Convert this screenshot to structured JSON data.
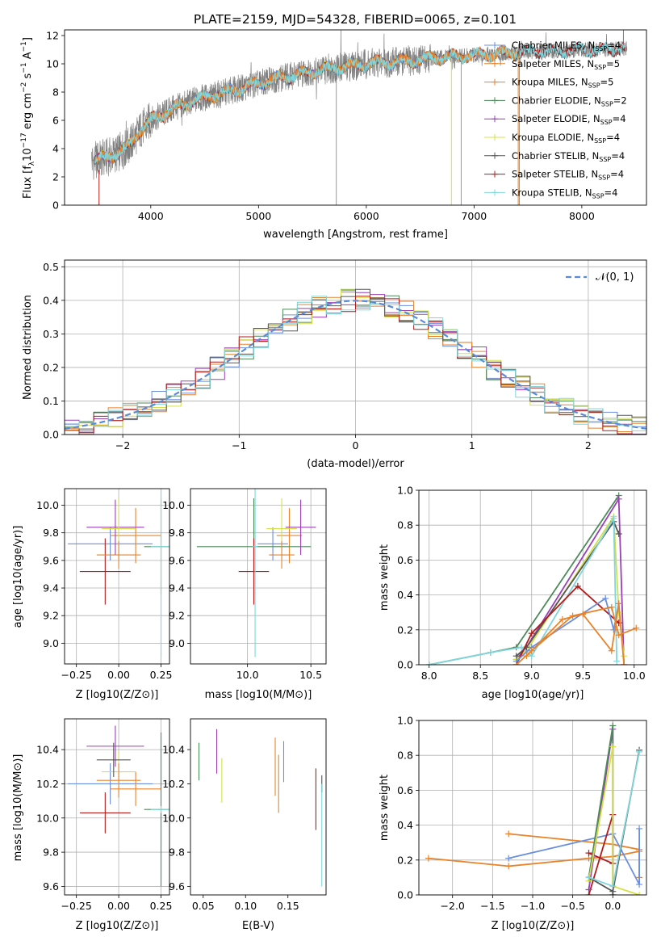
{
  "figure": {
    "title": "PLATE=2159, MJD=54328, FIBERID=0065, z=0.101"
  },
  "colors": {
    "Chabrier MILES": "#6a8fe0",
    "Salpeter MILES": "#e8832a",
    "Kroupa MILES": "#e8832a",
    "Chabrier ELODIE": "#4d8a5a",
    "Salpeter ELODIE": "#9a3fb5",
    "Kroupa ELODIE": "#d4e04a",
    "Chabrier STELIB": "#555555",
    "Salpeter STELIB": "#b31b1b",
    "Kroupa STELIB": "#7fd6dc",
    "data": "#808080"
  },
  "chart_data": [
    {
      "id": "spectrum",
      "type": "line",
      "xlabel": "wavelength [Angstrom, rest frame]",
      "ylabel": "Flux [f_λ 10^-17 erg cm^-2 s^-1 A^-1]",
      "ylabel_parts": {
        "a": "Flux [f",
        "b": "λ",
        "c": "10",
        "d": "−17",
        "e": " erg cm",
        "f": "−2",
        "g": " s",
        "h": "−1",
        "i": " A",
        "j": "−1",
        "k": "]"
      },
      "xlim": [
        3200,
        8600
      ],
      "ylim": [
        0,
        12.4
      ],
      "xticks": [
        4000,
        5000,
        6000,
        7000,
        8000
      ],
      "yticks": [
        0,
        2,
        4,
        6,
        8,
        10,
        12
      ],
      "legend_position": "right",
      "legend": [
        {
          "name": "Chabrier MILES",
          "nssp": "4"
        },
        {
          "name": "Salpeter MILES",
          "nssp": "5"
        },
        {
          "name": "Kroupa MILES",
          "nssp": "5"
        },
        {
          "name": "Chabrier ELODIE",
          "nssp": "2"
        },
        {
          "name": "Salpeter ELODIE",
          "nssp": "4"
        },
        {
          "name": "Kroupa ELODIE",
          "nssp": "4"
        },
        {
          "name": "Chabrier STELIB",
          "nssp": "4"
        },
        {
          "name": "Salpeter STELIB",
          "nssp": "4"
        },
        {
          "name": "Kroupa STELIB",
          "nssp": "4"
        }
      ],
      "nssp_label": "N",
      "nssp_sub": "SSP",
      "continuum": {
        "x": [
          3450,
          3600,
          3700,
          3800,
          3900,
          4000,
          4100,
          4200,
          4300,
          4400,
          4500,
          4600,
          4700,
          4800,
          4900,
          5000,
          5200,
          5400,
          5600,
          5800,
          6000,
          6200,
          6400,
          6600,
          6800,
          7000,
          7200,
          7400,
          7600,
          7800,
          8000,
          8200,
          8400
        ],
        "y": [
          3.1,
          3.4,
          3.7,
          4.2,
          5.3,
          6.0,
          6.4,
          6.8,
          7.1,
          7.4,
          7.6,
          7.8,
          8.0,
          8.2,
          8.4,
          8.6,
          9.0,
          9.3,
          9.6,
          9.8,
          10.0,
          10.1,
          10.2,
          10.4,
          10.5,
          10.6,
          10.7,
          10.8,
          10.9,
          10.9,
          11.0,
          11.0,
          11.1
        ]
      }
    },
    {
      "id": "residuals",
      "type": "step",
      "xlabel": "(data-model)/error",
      "ylabel": "Normed distribution",
      "xlim": [
        -2.5,
        2.5
      ],
      "ylim": [
        0,
        0.52
      ],
      "xticks": [
        -2,
        -1,
        0,
        1,
        2
      ],
      "xtick_labels": [
        "−2",
        "−1",
        "0",
        "1",
        "2"
      ],
      "yticks": [
        0.0,
        0.1,
        0.2,
        0.3,
        0.4,
        0.5
      ],
      "ytick_labels": [
        "0.0",
        "0.1",
        "0.2",
        "0.3",
        "0.4",
        "0.5"
      ],
      "grid": true,
      "legend_position": "top-right",
      "legend_label": "𝒩(0, 1)",
      "reference_curve": "normal(0,1)"
    },
    {
      "id": "age-vs-Z",
      "type": "scatter",
      "xlabel": "Z [log10(Z/Z⊙)]",
      "ylabel": "age [log10(age/yr)]",
      "xlim": [
        -0.32,
        0.3
      ],
      "ylim": [
        8.85,
        10.12
      ],
      "xticks": [
        -0.25,
        0.0,
        0.25
      ],
      "xtick_labels": [
        "−0.25",
        "0.00",
        "0.25"
      ],
      "yticks": [
        9.0,
        9.2,
        9.4,
        9.6,
        9.8,
        10.0
      ],
      "ytick_labels": [
        "9.0",
        "9.2",
        "9.4",
        "9.6",
        "9.8",
        "10.0"
      ],
      "grid": true,
      "points": [
        {
          "model": "Chabrier MILES",
          "x": -0.05,
          "xerr": 0.25,
          "y": 9.72,
          "yerr": 0.12
        },
        {
          "model": "Salpeter MILES",
          "x": 0.1,
          "xerr": 0.15,
          "y": 9.78,
          "yerr": 0.2
        },
        {
          "model": "Chabrier ELODIE",
          "x": 0.25,
          "xerr": 0.1,
          "y": 9.7,
          "yerr": 0.35
        },
        {
          "model": "Salpeter ELODIE",
          "x": -0.02,
          "xerr": 0.17,
          "y": 9.84,
          "yerr": 0.2
        },
        {
          "model": "Kroupa ELODIE",
          "x": 0.0,
          "xerr": 0.1,
          "y": 9.83,
          "yerr": 0.22
        },
        {
          "model": "Salpeter STELIB",
          "x": -0.08,
          "xerr": 0.15,
          "y": 9.52,
          "yerr": 0.24
        },
        {
          "model": "Kroupa STELIB",
          "x": 0.25,
          "xerr": 0.06,
          "y": 9.7,
          "yerr": 0.8
        },
        {
          "model": "Kroupa MILES",
          "x": 0.0,
          "xerr": 0.13,
          "y": 9.64,
          "yerr": 0.1
        }
      ]
    },
    {
      "id": "age-vs-mass",
      "type": "scatter",
      "xlabel": "mass [log10(M/M⊙)]",
      "xlim": [
        9.55,
        10.62
      ],
      "ylim": [
        8.85,
        10.12
      ],
      "xticks": [
        10.0,
        10.5
      ],
      "xtick_labels": [
        "10.0",
        "10.5"
      ],
      "yticks": [
        9.0,
        9.2,
        9.4,
        9.6,
        9.8,
        10.0
      ],
      "ytick_labels": [
        "9.0",
        "9.2",
        "9.4",
        "9.6",
        "9.8",
        "10.0"
      ],
      "grid": true,
      "points": [
        {
          "model": "Chabrier MILES",
          "x": 10.2,
          "xerr": 0.12,
          "y": 9.72,
          "yerr": 0.12
        },
        {
          "model": "Salpeter MILES",
          "x": 10.33,
          "xerr": 0.1,
          "y": 9.78,
          "yerr": 0.2
        },
        {
          "model": "Chabrier ELODIE",
          "x": 10.05,
          "xerr": 0.45,
          "y": 9.7,
          "yerr": 0.35
        },
        {
          "model": "Salpeter ELODIE",
          "x": 10.42,
          "xerr": 0.12,
          "y": 9.84,
          "yerr": 0.2
        },
        {
          "model": "Kroupa ELODIE",
          "x": 10.27,
          "xerr": 0.12,
          "y": 9.83,
          "yerr": 0.22
        },
        {
          "model": "Salpeter STELIB",
          "x": 10.05,
          "xerr": 0.12,
          "y": 9.52,
          "yerr": 0.24
        },
        {
          "model": "Kroupa STELIB",
          "x": 10.06,
          "xerr": 0.02,
          "y": 9.7,
          "yerr": 0.8
        },
        {
          "model": "Kroupa MILES",
          "x": 10.27,
          "xerr": 0.1,
          "y": 9.64,
          "yerr": 0.1
        }
      ]
    },
    {
      "id": "weight-vs-age",
      "type": "line",
      "xlabel": "age [log10(age/yr)]",
      "ylabel": "mass weight",
      "xlim": [
        7.9,
        10.12
      ],
      "ylim": [
        0,
        1.0
      ],
      "xticks": [
        8.0,
        8.5,
        9.0,
        9.5,
        10.0
      ],
      "xtick_labels": [
        "8.0",
        "8.5",
        "9.0",
        "9.5",
        "10.0"
      ],
      "yticks": [
        0.0,
        0.2,
        0.4,
        0.6,
        0.8,
        1.0
      ],
      "ytick_labels": [
        "0.0",
        "0.2",
        "0.4",
        "0.6",
        "0.8",
        "1.0"
      ],
      "grid": true,
      "series": [
        {
          "model": "Chabrier ELODIE",
          "x": [
            8.0,
            8.6,
            8.85,
            9.85
          ],
          "y": [
            0.0,
            0.07,
            0.1,
            0.97
          ]
        },
        {
          "model": "Salpeter ELODIE",
          "x": [
            8.85,
            8.95,
            9.85,
            9.9
          ],
          "y": [
            0.03,
            0.1,
            0.95,
            0.0
          ]
        },
        {
          "model": "Kroupa ELODIE",
          "x": [
            8.85,
            8.95,
            9.8,
            9.85,
            9.9
          ],
          "y": [
            0.03,
            0.08,
            0.85,
            0.3,
            0.05
          ]
        },
        {
          "model": "Chabrier STELIB",
          "x": [
            8.85,
            8.95,
            9.8,
            9.85
          ],
          "y": [
            0.05,
            0.1,
            0.82,
            0.75
          ]
        },
        {
          "model": "Kroupa STELIB",
          "x": [
            8.0,
            8.6,
            8.9,
            9.0,
            9.8,
            9.83
          ],
          "y": [
            0.0,
            0.07,
            0.1,
            0.05,
            0.84,
            0.02
          ]
        },
        {
          "model": "Salpeter STELIB",
          "x": [
            8.85,
            9.0,
            9.45,
            9.85
          ],
          "y": [
            0.0,
            0.18,
            0.45,
            0.24
          ]
        },
        {
          "model": "Chabrier MILES",
          "x": [
            8.85,
            9.0,
            9.72,
            9.8,
            9.85
          ],
          "y": [
            0.02,
            0.1,
            0.38,
            0.2,
            0.35
          ]
        },
        {
          "model": "Salpeter MILES",
          "x": [
            8.85,
            9.0,
            9.4,
            9.78,
            9.85,
            10.02
          ],
          "y": [
            0.0,
            0.08,
            0.28,
            0.33,
            0.17,
            0.21
          ]
        },
        {
          "model": "Kroupa MILES",
          "x": [
            8.95,
            9.3,
            9.5,
            9.78,
            9.85,
            9.9
          ],
          "y": [
            0.05,
            0.26,
            0.29,
            0.08,
            0.35,
            0.0
          ]
        }
      ]
    },
    {
      "id": "mass-vs-Z",
      "type": "scatter",
      "xlabel": "Z [log10(Z/Z⊙)]",
      "ylabel": "mass [log10(M/M⊙)]",
      "xlim": [
        -0.32,
        0.3
      ],
      "ylim": [
        9.55,
        10.58
      ],
      "xticks": [
        -0.25,
        0.0,
        0.25
      ],
      "xtick_labels": [
        "−0.25",
        "0.00",
        "0.25"
      ],
      "yticks": [
        9.6,
        9.8,
        10.0,
        10.2,
        10.4
      ],
      "ytick_labels": [
        "9.6",
        "9.8",
        "10.0",
        "10.2",
        "10.4"
      ],
      "grid": true,
      "points": [
        {
          "model": "Chabrier MILES",
          "x": -0.05,
          "xerr": 0.25,
          "y": 10.2,
          "yerr": 0.12
        },
        {
          "model": "Salpeter MILES",
          "x": 0.1,
          "xerr": 0.15,
          "y": 10.17,
          "yerr": 0.1
        },
        {
          "model": "Chabrier ELODIE",
          "x": 0.25,
          "xerr": 0.1,
          "y": 10.05,
          "yerr": 0.45
        },
        {
          "model": "Salpeter ELODIE",
          "x": -0.02,
          "xerr": 0.17,
          "y": 10.42,
          "yerr": 0.12
        },
        {
          "model": "Kroupa ELODIE",
          "x": 0.0,
          "xerr": 0.1,
          "y": 10.27,
          "yerr": 0.12
        },
        {
          "model": "Salpeter STELIB",
          "x": -0.08,
          "xerr": 0.15,
          "y": 10.03,
          "yerr": 0.12
        },
        {
          "model": "Kroupa STELIB",
          "x": 0.25,
          "xerr": 0.06,
          "y": 10.05,
          "yerr": 0.02
        },
        {
          "model": "Kroupa MILES",
          "x": 0.0,
          "xerr": 0.13,
          "y": 10.22,
          "yerr": 0.1
        },
        {
          "model": "Chabrier STELIB",
          "x": -0.03,
          "xerr": 0.1,
          "y": 10.34,
          "yerr": 0.1
        }
      ]
    },
    {
      "id": "mass-vs-ebv",
      "type": "scatter",
      "xlabel": "E(B-V)",
      "xlim": [
        0.035,
        0.195
      ],
      "ylim": [
        9.55,
        10.58
      ],
      "xticks": [
        0.05,
        0.1,
        0.15
      ],
      "xtick_labels": [
        "0.05",
        "0.10",
        "0.15"
      ],
      "yticks": [
        9.6,
        9.8,
        10.0,
        10.2,
        10.4
      ],
      "ytick_labels": [
        "9.6",
        "9.8",
        "10.0",
        "10.2",
        "10.4"
      ],
      "grid": false,
      "points": [
        {
          "model": "Chabrier ELODIE",
          "x": 0.045,
          "y": 10.33,
          "yerr": 0.11
        },
        {
          "model": "Salpeter ELODIE",
          "x": 0.066,
          "y": 10.39,
          "yerr": 0.13
        },
        {
          "model": "Kroupa ELODIE",
          "x": 0.072,
          "y": 10.22,
          "yerr": 0.13
        },
        {
          "model": "Kroupa MILES",
          "x": 0.135,
          "y": 10.3,
          "yerr": 0.17
        },
        {
          "model": "Salpeter MILES",
          "x": 0.139,
          "y": 10.2,
          "yerr": 0.17
        },
        {
          "model": "Chabrier MILES",
          "x": 0.145,
          "y": 10.33,
          "yerr": 0.12
        },
        {
          "model": "Salpeter STELIB",
          "x": 0.183,
          "y": 10.11,
          "yerr": 0.18
        },
        {
          "model": "Chabrier STELIB",
          "x": 0.19,
          "y": 10.2,
          "yerr": 0.05
        },
        {
          "model": "Kroupa STELIB",
          "x": 0.19,
          "y": 9.9,
          "yerr": 0.3
        }
      ]
    },
    {
      "id": "weight-vs-Z",
      "type": "line",
      "xlabel": "Z [log10(Z/Z⊙)]",
      "ylabel": "mass weight",
      "xlim": [
        -2.42,
        0.42
      ],
      "ylim": [
        0,
        1.0
      ],
      "xticks": [
        -2.0,
        -1.5,
        -1.0,
        -0.5,
        0.0
      ],
      "xtick_labels": [
        "−2.0",
        "−1.5",
        "−1.0",
        "−0.5",
        "0.0"
      ],
      "yticks": [
        0.0,
        0.2,
        0.4,
        0.6,
        0.8,
        1.0
      ],
      "ytick_labels": [
        "0.0",
        "0.2",
        "0.4",
        "0.6",
        "0.8",
        "1.0"
      ],
      "grid": true,
      "series": [
        {
          "model": "Salpeter MILES",
          "x": [
            -2.3,
            -1.3,
            -0.3,
            0.0,
            0.33
          ],
          "y": [
            0.21,
            0.165,
            0.21,
            0.22,
            0.25
          ]
        },
        {
          "model": "Kroupa MILES",
          "x": [
            -1.3,
            0.0,
            0.33,
            0.33
          ],
          "y": [
            0.35,
            0.29,
            0.26,
            0.1
          ]
        },
        {
          "model": "Chabrier MILES",
          "x": [
            -1.3,
            0.0,
            0.33,
            0.33
          ],
          "y": [
            0.21,
            0.35,
            0.06,
            0.38
          ]
        },
        {
          "model": "Salpeter STELIB",
          "x": [
            -0.3,
            0.0,
            0.0,
            -0.3
          ],
          "y": [
            0.24,
            0.18,
            0.46,
            0.0
          ]
        },
        {
          "model": "Salpeter ELODIE",
          "x": [
            -0.3,
            0.0,
            0.0
          ],
          "y": [
            0.03,
            0.95,
            0.0
          ]
        },
        {
          "model": "Chabrier ELODIE",
          "x": [
            -0.3,
            0.0,
            0.0
          ],
          "y": [
            0.1,
            0.97,
            0.0
          ]
        },
        {
          "model": "Kroupa ELODIE",
          "x": [
            -0.3,
            0.0,
            0.0,
            0.33
          ],
          "y": [
            0.08,
            0.85,
            0.05,
            0.0
          ]
        },
        {
          "model": "Chabrier STELIB",
          "x": [
            -0.3,
            0.0,
            0.33
          ],
          "y": [
            0.1,
            0.02,
            0.83
          ]
        },
        {
          "model": "Kroupa STELIB",
          "x": [
            -0.3,
            0.0,
            0.33
          ],
          "y": [
            0.1,
            0.05,
            0.82
          ]
        }
      ]
    }
  ]
}
